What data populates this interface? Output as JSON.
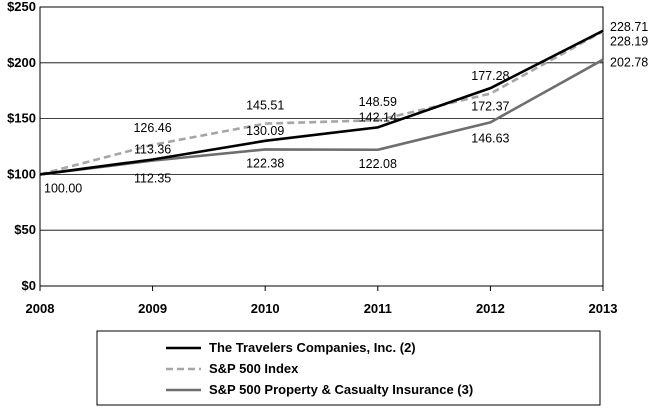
{
  "chart_data": {
    "type": "line",
    "categories": [
      "2008",
      "2009",
      "2010",
      "2011",
      "2012",
      "2013"
    ],
    "ylim": [
      0,
      250
    ],
    "y_ticks": [
      "$0",
      "$50",
      "$100",
      "$150",
      "$200",
      "$250"
    ],
    "y_tick_values": [
      0,
      50,
      100,
      150,
      200,
      250
    ],
    "grid": true,
    "legend_position": "bottom",
    "series": [
      {
        "name": "The Travelers Companies, Inc. (2)",
        "values": [
          100.0,
          113.36,
          130.09,
          142.14,
          177.28,
          228.71
        ],
        "labels": [
          "100.00",
          "113.36",
          "130.09",
          "142.14",
          "177.28",
          "228.71"
        ],
        "color": "#000000",
        "style": "solid"
      },
      {
        "name": "S&P 500 Index",
        "values": [
          100.0,
          126.46,
          145.51,
          148.59,
          172.37,
          228.19
        ],
        "labels": [
          "",
          "126.46",
          "145.51",
          "148.59",
          "172.37",
          "228.19"
        ],
        "color": "#a6a6a6",
        "style": "dashed"
      },
      {
        "name": "S&P 500 Property & Casualty Insurance (3)",
        "values": [
          100.0,
          112.35,
          122.38,
          122.08,
          146.63,
          202.78
        ],
        "labels": [
          "",
          "112.35",
          "122.38",
          "122.08",
          "146.63",
          "202.78"
        ],
        "color": "#6e6e6e",
        "style": "solid"
      }
    ]
  }
}
